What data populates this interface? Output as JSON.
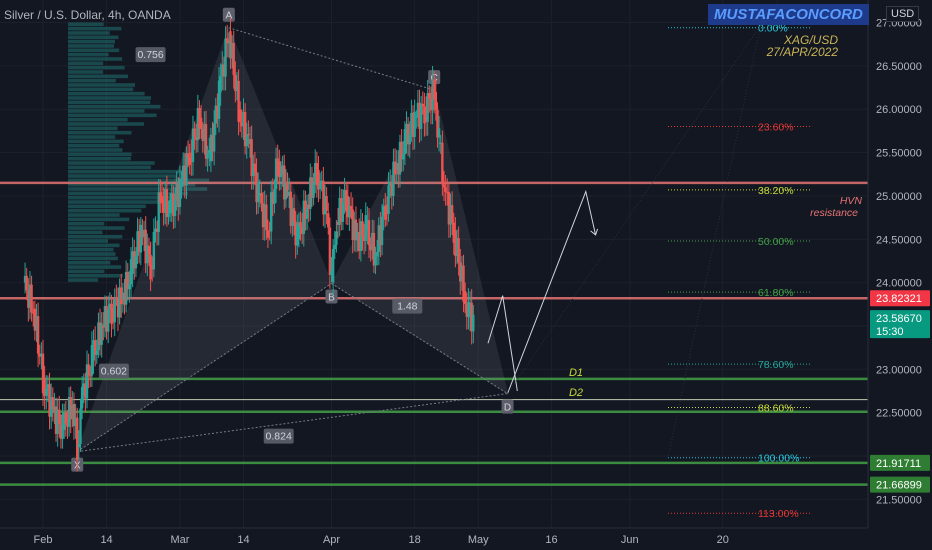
{
  "header": {
    "symbol_line": "Silver / U.S. Dollar, 4h, OANDA",
    "brand": "MUSTAFACONCORD",
    "currency": "USD"
  },
  "annotations": {
    "instrument": "XAG/USD",
    "date": "27/APR/2022",
    "hvn_label": "HVN",
    "resistance_label": "resistance",
    "d1_label": "D1",
    "d2_label": "D2"
  },
  "pattern": {
    "points": [
      {
        "label": "X",
        "date_day": 7,
        "price": 22.05
      },
      {
        "label": "A",
        "date_day": 38,
        "price": 26.94
      },
      {
        "label": "B",
        "date_day": 59,
        "price": 23.99
      },
      {
        "label": "C",
        "date_day": 80,
        "price": 26.22
      },
      {
        "label": "D",
        "date_day": 95,
        "price": 22.72
      }
    ],
    "ratios": [
      "0.756",
      "0.602",
      "1.48",
      "0.824"
    ]
  },
  "fib_levels": [
    {
      "label": "0.00%",
      "price": 26.94,
      "color": "#26c6da"
    },
    {
      "label": "23.60%",
      "price": 25.8,
      "color": "#e53935"
    },
    {
      "label": "38.20%",
      "price": 25.07,
      "color": "#c6d93a"
    },
    {
      "label": "50.00%",
      "price": 24.48,
      "color": "#43a047"
    },
    {
      "label": "61.80%",
      "price": 23.89,
      "color": "#43a047"
    },
    {
      "label": "78.60%",
      "price": 23.06,
      "color": "#26a69a"
    },
    {
      "label": "88.60%",
      "price": 22.56,
      "color": "#c6d93a"
    },
    {
      "label": "100.00%",
      "price": 21.98,
      "color": "#26c6da"
    },
    {
      "label": "113.00%",
      "price": 21.34,
      "color": "#e53935"
    }
  ],
  "horizontal_lines": [
    {
      "name": "hvn-resistance",
      "price": 25.15,
      "color": "#e57373"
    },
    {
      "name": "red-support",
      "price": 23.82,
      "color": "#e57373"
    },
    {
      "name": "green-1",
      "price": 22.89,
      "color": "#43a047"
    },
    {
      "name": "green-2",
      "price": 22.51,
      "color": "#43a047"
    },
    {
      "name": "green-3",
      "price": 21.92,
      "color": "#43a047"
    },
    {
      "name": "green-4",
      "price": 21.67,
      "color": "#43a047"
    },
    {
      "name": "d2-line",
      "price": 22.65,
      "color": "#dcedc8"
    }
  ],
  "price_axis": {
    "ticks": [
      "27.00000",
      "26.50000",
      "26.00000",
      "25.50000",
      "25.00000",
      "24.50000",
      "24.00000",
      "23.00000",
      "22.50000",
      "21.50000"
    ],
    "badges": [
      {
        "text": "23.82321",
        "price": 23.82,
        "color": "#f23645"
      },
      {
        "text": "23.58670",
        "sub": "15:30",
        "price": 23.59,
        "color": "#089981"
      },
      {
        "text": "21.91711",
        "price": 21.92,
        "color": "#2e7d32"
      },
      {
        "text": "21.66899",
        "price": 21.67,
        "color": "#2e7d32"
      }
    ]
  },
  "time_axis": {
    "ticks": [
      {
        "label": "Feb",
        "day": 0
      },
      {
        "label": "14",
        "day": 13
      },
      {
        "label": "Mar",
        "day": 28
      },
      {
        "label": "14",
        "day": 41
      },
      {
        "label": "Apr",
        "day": 59
      },
      {
        "label": "18",
        "day": 76
      },
      {
        "label": "May",
        "day": 89
      },
      {
        "label": "16",
        "day": 104
      },
      {
        "label": "Jun",
        "day": 120
      },
      {
        "label": "20",
        "day": 139
      }
    ]
  },
  "projection": [
    {
      "date_day": 95,
      "price": 22.72
    },
    {
      "date_day": 111,
      "price": 25.05
    },
    {
      "date_day": 113,
      "price": 24.55
    }
  ],
  "chart_data": {
    "type": "candlestick",
    "description_series": "XAG/USD 4h approximate closes",
    "x": [
      -4,
      -2,
      0,
      2,
      4,
      6,
      7,
      8,
      10,
      12,
      14,
      16,
      18,
      20,
      22,
      24,
      26,
      28,
      30,
      32,
      34,
      36,
      38,
      40,
      42,
      44,
      46,
      48,
      50,
      52,
      54,
      56,
      58,
      59,
      60,
      62,
      64,
      66,
      68,
      70,
      72,
      74,
      76,
      78,
      80,
      81,
      82,
      84,
      86,
      87,
      88
    ],
    "closes": [
      24.0,
      23.7,
      22.9,
      22.5,
      22.3,
      22.6,
      22.1,
      22.7,
      23.1,
      23.5,
      23.7,
      23.8,
      24.1,
      24.6,
      24.2,
      25.0,
      24.8,
      25.1,
      25.5,
      25.9,
      25.4,
      26.2,
      26.9,
      26.0,
      25.6,
      25.0,
      24.6,
      25.4,
      25.0,
      24.5,
      24.9,
      25.3,
      24.8,
      24.0,
      24.7,
      25.0,
      24.5,
      24.6,
      24.3,
      24.9,
      25.3,
      25.6,
      25.9,
      26.0,
      26.2,
      25.6,
      25.1,
      24.6,
      23.9,
      23.6,
      23.59
    ],
    "ylim": [
      21.2,
      27.5
    ]
  }
}
